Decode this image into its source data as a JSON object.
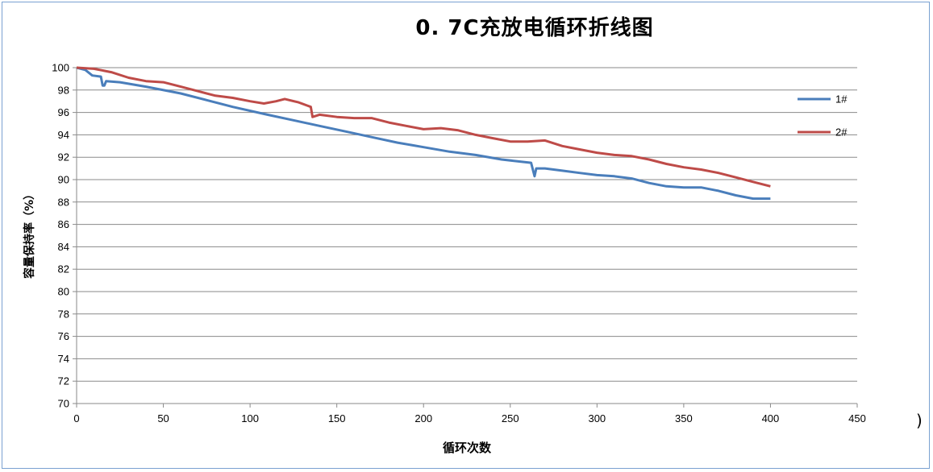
{
  "chart_data": {
    "type": "line",
    "title": "0. 7C充放电循环折线图",
    "xlabel": "循环次数",
    "ylabel": "容量保持率（%）",
    "xlim": [
      0,
      450
    ],
    "ylim": [
      70,
      100
    ],
    "x_ticks": [
      "0",
      "50",
      "100",
      "150",
      "200",
      "250",
      "300",
      "350",
      "400",
      "450"
    ],
    "y_ticks": [
      "70",
      "72",
      "74",
      "76",
      "78",
      "80",
      "82",
      "84",
      "86",
      "88",
      "90",
      "92",
      "94",
      "96",
      "98",
      "100"
    ],
    "grid": "horizontal",
    "legend_position": "right",
    "series": [
      {
        "name": "1#",
        "color": "#4a7ebb",
        "points": [
          [
            0,
            100
          ],
          [
            5,
            99.8
          ],
          [
            9,
            99.3
          ],
          [
            14,
            99.2
          ],
          [
            15,
            98.4
          ],
          [
            16,
            98.4
          ],
          [
            17,
            98.8
          ],
          [
            25,
            98.7
          ],
          [
            40,
            98.3
          ],
          [
            60,
            97.7
          ],
          [
            75,
            97.1
          ],
          [
            90,
            96.5
          ],
          [
            110,
            95.8
          ],
          [
            125,
            95.3
          ],
          [
            140,
            94.8
          ],
          [
            155,
            94.3
          ],
          [
            170,
            93.8
          ],
          [
            185,
            93.3
          ],
          [
            200,
            92.9
          ],
          [
            215,
            92.5
          ],
          [
            230,
            92.2
          ],
          [
            245,
            91.8
          ],
          [
            262,
            91.5
          ],
          [
            264,
            90.3
          ],
          [
            265,
            91.0
          ],
          [
            270,
            91.0
          ],
          [
            280,
            90.8
          ],
          [
            290,
            90.6
          ],
          [
            300,
            90.4
          ],
          [
            310,
            90.3
          ],
          [
            320,
            90.1
          ],
          [
            330,
            89.7
          ],
          [
            340,
            89.4
          ],
          [
            350,
            89.3
          ],
          [
            360,
            89.3
          ],
          [
            370,
            89.0
          ],
          [
            380,
            88.6
          ],
          [
            390,
            88.3
          ],
          [
            400,
            88.3
          ]
        ]
      },
      {
        "name": "2#",
        "color": "#be4b48",
        "points": [
          [
            0,
            100
          ],
          [
            10,
            99.9
          ],
          [
            20,
            99.6
          ],
          [
            30,
            99.1
          ],
          [
            40,
            98.8
          ],
          [
            50,
            98.7
          ],
          [
            60,
            98.3
          ],
          [
            70,
            97.9
          ],
          [
            80,
            97.5
          ],
          [
            90,
            97.3
          ],
          [
            100,
            97.0
          ],
          [
            108,
            96.8
          ],
          [
            115,
            97.0
          ],
          [
            120,
            97.2
          ],
          [
            128,
            96.9
          ],
          [
            135,
            96.5
          ],
          [
            136,
            95.6
          ],
          [
            140,
            95.8
          ],
          [
            150,
            95.6
          ],
          [
            160,
            95.5
          ],
          [
            170,
            95.5
          ],
          [
            180,
            95.1
          ],
          [
            190,
            94.8
          ],
          [
            200,
            94.5
          ],
          [
            210,
            94.6
          ],
          [
            220,
            94.4
          ],
          [
            230,
            94.0
          ],
          [
            240,
            93.7
          ],
          [
            250,
            93.4
          ],
          [
            260,
            93.4
          ],
          [
            270,
            93.5
          ],
          [
            280,
            93.0
          ],
          [
            290,
            92.7
          ],
          [
            300,
            92.4
          ],
          [
            310,
            92.2
          ],
          [
            320,
            92.1
          ],
          [
            330,
            91.8
          ],
          [
            340,
            91.4
          ],
          [
            350,
            91.1
          ],
          [
            360,
            90.9
          ],
          [
            370,
            90.6
          ],
          [
            380,
            90.2
          ],
          [
            390,
            89.8
          ],
          [
            400,
            89.4
          ]
        ]
      }
    ]
  },
  "stray_glyph": ")"
}
